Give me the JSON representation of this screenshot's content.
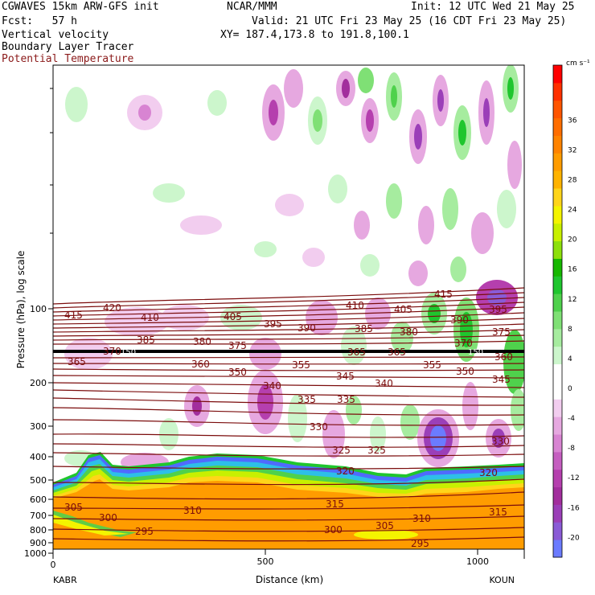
{
  "header": {
    "model": "CGWAVES 15km ARW-GFS init",
    "org": "NCAR/MMM",
    "init": "Init: 12 UTC Wed 21 May 25",
    "fcst": "Fcst:   57 h",
    "valid": "Valid: 21 UTC Fri 23 May 25 (16 CDT Fri 23 May 25)",
    "field1": "Vertical velocity",
    "xy": "XY= 187.4,173.8 to 191.8,100.1",
    "field2": "Boundary Layer Tracer",
    "field3": "Potential Temperature"
  },
  "chart_data": {
    "type": "heatmap",
    "xlabel": "Distance (km)",
    "ylabel": "Pressure (hPa), log scale",
    "y_log_scale": true,
    "y_reversed": true,
    "x_range": [
      0,
      1120
    ],
    "x_ticks": [
      0,
      500,
      1000
    ],
    "y_ticks": [
      100,
      200,
      300,
      400,
      500,
      600,
      700,
      800,
      900,
      1000
    ],
    "start_label": "KABR",
    "end_label": "KOUN",
    "colorbar": {
      "unit": "cm s⁻¹",
      "ticks": [
        36,
        32,
        28,
        24,
        20,
        16,
        12,
        8,
        4,
        0,
        -4,
        -8,
        -12,
        -16,
        -20
      ],
      "colors": [
        "#6b7bff",
        "#8a5bd6",
        "#9b3fb8",
        "#a22e9d",
        "#b53fae",
        "#c55ec0",
        "#d884d2",
        "#e6a8e0",
        "#f2cdef",
        "#ffffff",
        "#ffffff",
        "#ccf6cc",
        "#a6ec9f",
        "#7fe075",
        "#4fd14c",
        "#1fc62e",
        "#16b800",
        "#8de00b",
        "#c8f000",
        "#f4f400",
        "#ffd51a",
        "#ffb300",
        "#ff9c00",
        "#ff8300",
        "#ff6d00",
        "#ff5500",
        "#ff3000",
        "#ff0000"
      ],
      "colors_order": "bottom-to-top"
    },
    "theta_contour_labels": [
      "415",
      "420",
      "410",
      "405",
      "395",
      "390",
      "385",
      "380",
      "375",
      "370",
      "365",
      "360",
      "355",
      "350",
      "345",
      "340",
      "335",
      "330",
      "325",
      "320",
      "315",
      "310",
      "305",
      "300",
      "295"
    ],
    "extra_labels": [
      "370",
      "365",
      "365",
      "150",
      "150"
    ],
    "tropopause_marker": "150"
  }
}
